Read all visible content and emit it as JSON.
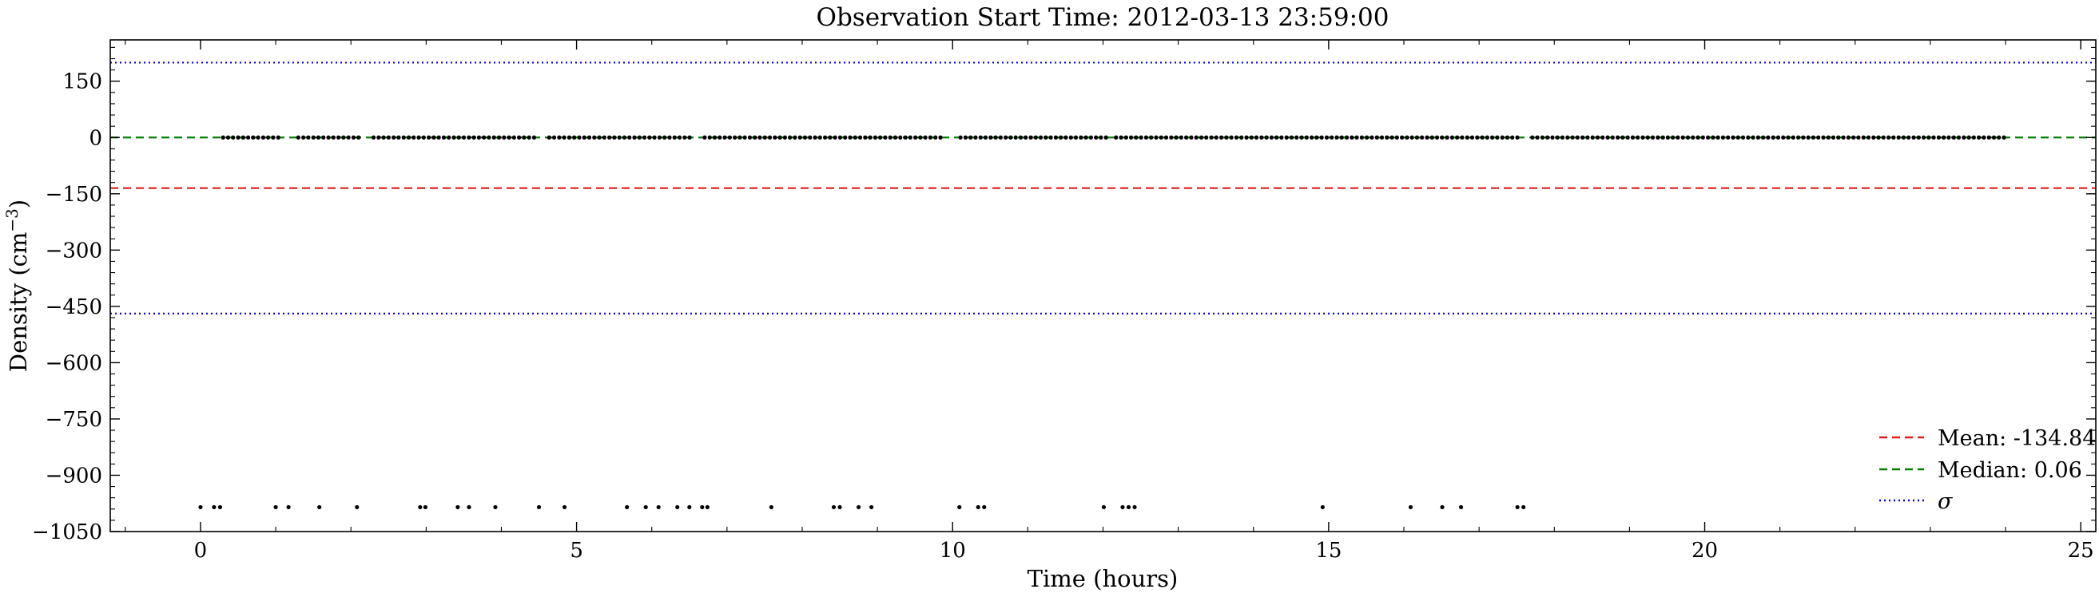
{
  "chart_data": {
    "type": "scatter",
    "title": "Observation Start Time: 2012-03-13 23:59:00",
    "xlabel": "Time (hours)",
    "ylabel": "Density (cm",
    "ylabel_exp": "−3",
    "ylabel_end": ")",
    "xlim": [
      -1.2,
      25.2
    ],
    "ylim": [
      -1050,
      260
    ],
    "xticks": [
      0,
      5,
      10,
      15,
      20,
      25
    ],
    "xtick_labels": [
      "0",
      "5",
      "10",
      "15",
      "20",
      "25"
    ],
    "yticks": [
      150,
      0,
      -150,
      -300,
      -450,
      -600,
      -750,
      -900,
      -1050
    ],
    "ytick_labels": [
      "150",
      "0",
      "−150",
      "−300",
      "−450",
      "−600",
      "−750",
      "−900",
      "−1050"
    ],
    "grid": false,
    "legend_position": "bottom-right",
    "reference_lines": [
      {
        "label": "Mean: -134.84",
        "value": -134.84,
        "style": "dashed",
        "color": "#e41a1c"
      },
      {
        "label": "Median: 0.06",
        "value": 0.06,
        "style": "dashed",
        "color": "#008000"
      },
      {
        "label": "σ",
        "values": [
          199.5,
          -469.2
        ],
        "style": "dotted",
        "color": "#0000ff"
      }
    ],
    "near_zero_points": {
      "y": 0.06,
      "x_start": 0.3,
      "x_end": 24.0,
      "step": 0.0667,
      "gaps": [
        [
          0.0,
          0.3
        ],
        [
          1.05,
          1.25
        ],
        [
          2.15,
          2.3
        ],
        [
          4.45,
          4.6
        ],
        [
          6.55,
          6.7
        ],
        [
          9.85,
          10.05
        ],
        [
          12.05,
          12.15
        ],
        [
          17.55,
          17.7
        ]
      ]
    },
    "outlier_points": {
      "y": -985,
      "x": [
        0.0,
        0.18,
        0.26,
        1.0,
        1.17,
        1.58,
        2.08,
        2.92,
        2.99,
        3.42,
        3.57,
        3.92,
        4.5,
        4.84,
        5.67,
        5.92,
        6.09,
        6.34,
        6.5,
        6.67,
        6.74,
        7.59,
        8.42,
        8.5,
        8.75,
        8.92,
        10.09,
        10.34,
        10.42,
        12.01,
        12.26,
        12.34,
        12.42,
        14.92,
        16.09,
        16.51,
        16.76,
        17.51,
        17.59
      ]
    }
  }
}
